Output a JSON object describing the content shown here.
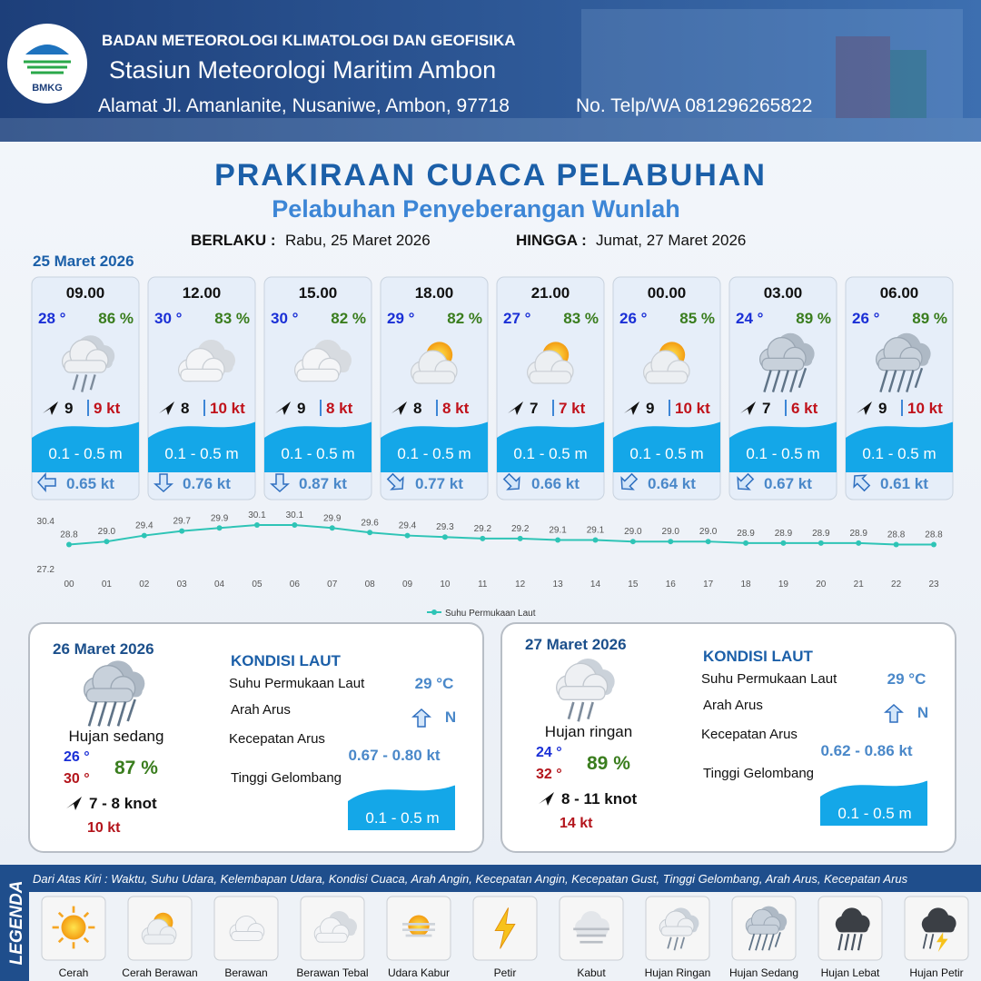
{
  "header": {
    "logo": "BMKG",
    "org": "BADAN METEOROLOGI KLIMATOLOGI DAN GEOFISIKA",
    "station": "Stasiun Meteorologi Maritim Ambon",
    "address": "Alamat Jl. Amanlanite, Nusaniwe, Ambon, 97718",
    "phone": "No. Telp/WA  081296265822"
  },
  "title": "PRAKIRAAN CUACA PELABUHAN",
  "subtitle": "Pelabuhan Penyeberangan Wunlah",
  "validity": {
    "from_label": "BERLAKU :",
    "from": "Rabu, 25 Maret 2026",
    "to_label": "HINGGA :",
    "to": "Jumat, 27 Maret 2026"
  },
  "day1": {
    "date": "25 Maret 2026",
    "cards": [
      {
        "time": "09.00",
        "temp": "28 °",
        "humidity": "86 %",
        "wind": "9",
        "gust": "9 kt",
        "wave": "0.1 - 0.5 m",
        "current": "0.65 kt"
      },
      {
        "time": "12.00",
        "temp": "30 °",
        "humidity": "83 %",
        "wind": "8",
        "gust": "10 kt",
        "wave": "0.1 - 0.5 m",
        "current": "0.76 kt"
      },
      {
        "time": "15.00",
        "temp": "30 °",
        "humidity": "82 %",
        "wind": "9",
        "gust": "8 kt",
        "wave": "0.1 - 0.5 m",
        "current": "0.87 kt"
      },
      {
        "time": "18.00",
        "temp": "29 °",
        "humidity": "82 %",
        "wind": "8",
        "gust": "8 kt",
        "wave": "0.1 - 0.5 m",
        "current": "0.77 kt"
      },
      {
        "time": "21.00",
        "temp": "27 °",
        "humidity": "83 %",
        "wind": "7",
        "gust": "7 kt",
        "wave": "0.1 - 0.5 m",
        "current": "0.66 kt"
      },
      {
        "time": "00.00",
        "temp": "26 °",
        "humidity": "85 %",
        "wind": "9",
        "gust": "10 kt",
        "wave": "0.1 - 0.5 m",
        "current": "0.64 kt"
      },
      {
        "time": "03.00",
        "temp": "24 °",
        "humidity": "89 %",
        "wind": "7",
        "gust": "6 kt",
        "wave": "0.1 - 0.5 m",
        "current": "0.67 kt"
      },
      {
        "time": "06.00",
        "temp": "26 °",
        "humidity": "89 %",
        "wind": "9",
        "gust": "10 kt",
        "wave": "0.1 - 0.5 m",
        "current": "0.61 kt"
      }
    ]
  },
  "chart_data": {
    "type": "line",
    "categories": [
      "00",
      "01",
      "02",
      "03",
      "04",
      "05",
      "06",
      "07",
      "08",
      "09",
      "10",
      "11",
      "12",
      "13",
      "14",
      "15",
      "16",
      "17",
      "18",
      "19",
      "20",
      "21",
      "22",
      "23"
    ],
    "series": [
      {
        "name": "Suhu Permukaan Laut",
        "color": "#2ec4b6",
        "values": [
          28.8,
          29.0,
          29.4,
          29.7,
          29.9,
          30.1,
          30.1,
          29.9,
          29.6,
          29.4,
          29.3,
          29.2,
          29.2,
          29.1,
          29.1,
          29.0,
          29.0,
          29.0,
          28.9,
          28.9,
          28.9,
          28.9,
          28.8,
          28.8
        ],
        "value_labels": [
          "28.8",
          "29.0",
          "29.4",
          "29.7",
          "29.9",
          "30.1",
          "30.1",
          "29.9",
          "29.6",
          "29.4",
          "29.3",
          "29.2",
          "29.2",
          "29.1",
          "29.1",
          "29.0",
          "29.0",
          "29.0",
          "28.9",
          "28.9",
          "28.9",
          "28.9",
          "28.8",
          "28.8"
        ]
      }
    ],
    "ylim": [
      27.2,
      30.4
    ],
    "yticks": [
      27.2,
      30.4
    ],
    "grid": false,
    "legend": "bottom"
  },
  "days": [
    {
      "date": "26 Maret 2026",
      "weather": "Hujan sedang",
      "temp_min": "26 °",
      "temp_max": "30 °",
      "humidity": "87 %",
      "wind": "7  - 8 knot",
      "gust": "10 kt",
      "sea_title": "KONDISI LAUT",
      "sst_label": "Suhu Permukaan Laut",
      "sst": "29 °C",
      "dir_label": "Arah Arus",
      "dir": "N",
      "speed_label": "Kecepatan Arus",
      "speed": "0.67 - 0.80 kt",
      "wave_label": "Tinggi Gelombang",
      "wave": "0.1 - 0.5 m"
    },
    {
      "date": "27 Maret 2026",
      "weather": "Hujan ringan",
      "temp_min": "24 °",
      "temp_max": "32 °",
      "humidity": "89 %",
      "wind": "8  - 11 knot",
      "gust": "14 kt",
      "sea_title": "KONDISI LAUT",
      "sst_label": "Suhu Permukaan Laut",
      "sst": "29 °C",
      "dir_label": "Arah Arus",
      "dir": "N",
      "speed_label": "Kecepatan Arus",
      "speed": "0.62 - 0.86 kt",
      "wave_label": "Tinggi Gelombang",
      "wave": "0.1 - 0.5 m"
    }
  ],
  "legend": {
    "title": "LEGENDA",
    "description": "Dari Atas Kiri : Waktu, Suhu Udara, Kelembapan Udara, Kondisi Cuaca, Arah Angin, Kecepatan Angin, Kecepatan Gust, Tinggi Gelombang, Arah Arus, Kecepatan Arus",
    "items": [
      "Cerah",
      "Cerah Berawan",
      "Berawan",
      "Berawan Tebal",
      "Udara Kabur",
      "Petir",
      "Kabut",
      "Hujan Ringan",
      "Hujan Sedang",
      "Hujan Lebat",
      "Hujan Petir"
    ]
  }
}
